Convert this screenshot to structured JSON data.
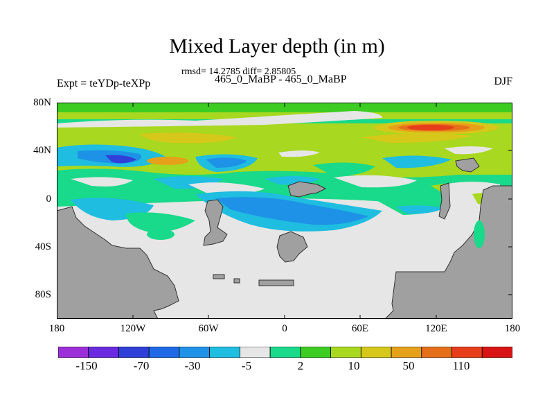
{
  "title": "Mixed Layer depth (in m)",
  "stats": "rmsd= 14.2785 diff= 2.85805",
  "experiments": "465_0_MaBP - 465_0_MaBP",
  "expt_label": "Expt = teYDp-teXPp",
  "season": "DJF",
  "lat_labels": [
    "80N",
    "40N",
    "0",
    "40S",
    "80S"
  ],
  "lon_labels": [
    "180",
    "120W",
    "60W",
    "0",
    "60E",
    "120E",
    "180"
  ],
  "colorbar": {
    "colors": [
      "#9b30d8",
      "#6a2be0",
      "#2f3fd8",
      "#1f69e6",
      "#1e92e6",
      "#1fbde0",
      "#e6e6e6",
      "#19d98a",
      "#3dcc22",
      "#a8d81f",
      "#d6c81a",
      "#e6a11a",
      "#e6701a",
      "#e63e1a",
      "#d81414"
    ],
    "labels": [
      "-150",
      "-70",
      "-30",
      "-5",
      "2",
      "10",
      "50",
      "110"
    ],
    "land_color": "#a0a0a0"
  }
}
